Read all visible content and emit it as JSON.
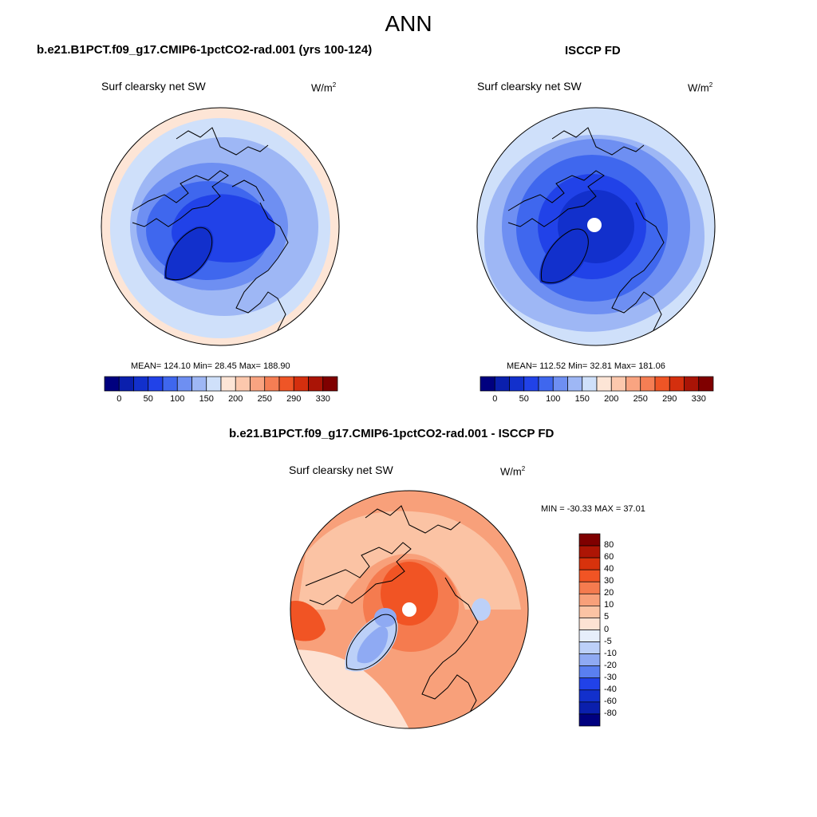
{
  "figure": {
    "title": "ANN"
  },
  "palettes": {
    "abs": [
      "#00007f",
      "#0a1fad",
      "#1230cc",
      "#2142e8",
      "#3f67ee",
      "#6e8ff2",
      "#9eb7f5",
      "#cfe0fa",
      "#fde5d6",
      "#fcc8ad",
      "#f9a481",
      "#f57e54",
      "#ef5526",
      "#d42f0e",
      "#aa1406",
      "#7f0000"
    ],
    "diff": [
      "#00007f",
      "#0a1fad",
      "#1230cc",
      "#2142e8",
      "#5a7ff0",
      "#8faaf3",
      "#bcd0f8",
      "#e6eefb",
      "#fde2d3",
      "#fbc3a4",
      "#f8a07a",
      "#f57b4f",
      "#f15424",
      "#d7320c",
      "#ad1505",
      "#7f0000"
    ]
  },
  "panels": [
    {
      "id": "model",
      "title": "b.e21.B1PCT.f09_g17.CMIP6-1pctCO2-rad.001 (yrs 100-124)",
      "variable": "Surf clearsky net SW",
      "units_base": "W/m",
      "units_sup": "2",
      "stats_text": "MEAN= 124.10  Min=  28.45  Max= 188.90"
    },
    {
      "id": "obs",
      "title": "ISCCP FD",
      "variable": "Surf clearsky net SW",
      "units_base": "W/m",
      "units_sup": "2",
      "stats_text": "MEAN= 112.52  Min=  32.81  Max= 181.06"
    },
    {
      "id": "diff",
      "title": "b.e21.B1PCT.f09_g17.CMIP6-1pctCO2-rad.001 - ISCCP FD",
      "variable": "Surf clearsky net SW",
      "units_base": "W/m",
      "units_sup": "2",
      "stats_text": "MIN = -30.33 MAX =  37.01"
    }
  ],
  "chart_data": [
    {
      "type": "heatmap",
      "projection": "north-polar-stereographic",
      "title": "b.e21.B1PCT.f09_g17.CMIP6-1pctCO2-rad.001 (yrs 100-124)",
      "variable": "Surf clearsky net SW",
      "units": "W/m2",
      "mean": 124.1,
      "min": 28.45,
      "max": 188.9,
      "colorbar": {
        "orientation": "horizontal",
        "tick_labels": [
          "0",
          "50",
          "100",
          "150",
          "200",
          "250",
          "290",
          "330"
        ]
      }
    },
    {
      "type": "heatmap",
      "projection": "north-polar-stereographic",
      "title": "ISCCP FD",
      "variable": "Surf clearsky net SW",
      "units": "W/m2",
      "mean": 112.52,
      "min": 32.81,
      "max": 181.06,
      "colorbar": {
        "orientation": "horizontal",
        "tick_labels": [
          "0",
          "50",
          "100",
          "150",
          "200",
          "250",
          "290",
          "330"
        ]
      }
    },
    {
      "type": "heatmap",
      "projection": "north-polar-stereographic",
      "title": "b.e21.B1PCT.f09_g17.CMIP6-1pctCO2-rad.001 - ISCCP FD",
      "variable": "Surf clearsky net SW",
      "units": "W/m2",
      "min": -30.33,
      "max": 37.01,
      "colorbar": {
        "orientation": "vertical",
        "tick_labels": [
          "80",
          "60",
          "40",
          "30",
          "20",
          "10",
          "5",
          "0",
          "-5",
          "-10",
          "-20",
          "-30",
          "-40",
          "-60",
          "-80"
        ]
      }
    }
  ]
}
